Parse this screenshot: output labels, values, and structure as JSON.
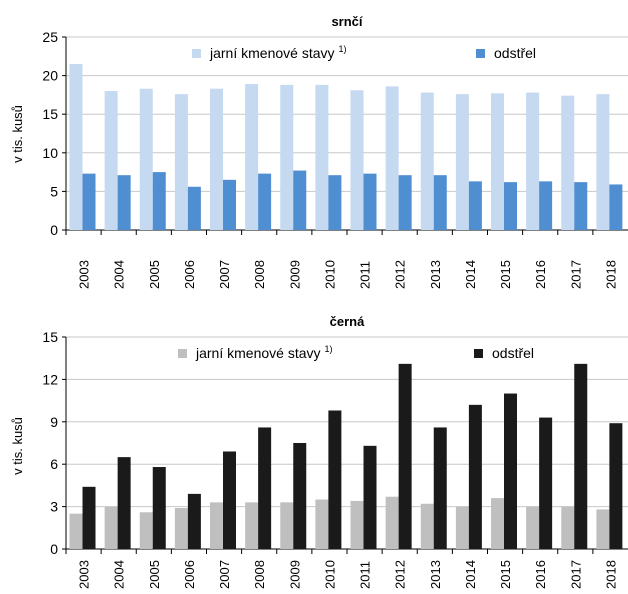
{
  "chart_data": [
    {
      "type": "bar",
      "title": "srnčí",
      "ylabel": "v tis. kusů",
      "xlabel": "",
      "ylim": [
        0,
        25
      ],
      "yticks": [
        0,
        5,
        10,
        15,
        20,
        25
      ],
      "grid": true,
      "legend_position": "top",
      "categories": [
        "2003",
        "2004",
        "2005",
        "2006",
        "2007",
        "2008",
        "2009",
        "2010",
        "2011",
        "2012",
        "2013",
        "2014",
        "2015",
        "2016",
        "2017",
        "2018"
      ],
      "series": [
        {
          "name": "jarní kmenové stavy",
          "superscript": "1)",
          "color": "#c5d9f1",
          "values": [
            21.5,
            18.0,
            18.3,
            17.6,
            18.3,
            18.9,
            18.8,
            18.8,
            18.1,
            18.6,
            17.8,
            17.6,
            17.7,
            17.8,
            17.4,
            17.6
          ]
        },
        {
          "name": "odstřel",
          "superscript": "",
          "color": "#4f8ed0",
          "values": [
            7.3,
            7.1,
            7.5,
            5.6,
            6.5,
            7.3,
            7.7,
            7.1,
            7.3,
            7.1,
            7.1,
            6.3,
            6.2,
            6.3,
            6.2,
            5.9
          ]
        }
      ]
    },
    {
      "type": "bar",
      "title": "černá",
      "ylabel": "v tis. kusů",
      "xlabel": "",
      "ylim": [
        0,
        15
      ],
      "yticks": [
        0,
        3,
        6,
        9,
        12,
        15
      ],
      "grid": true,
      "legend_position": "top",
      "categories": [
        "2003",
        "2004",
        "2005",
        "2006",
        "2007",
        "2008",
        "2009",
        "2010",
        "2011",
        "2012",
        "2013",
        "2014",
        "2015",
        "2016",
        "2017",
        "2018"
      ],
      "series": [
        {
          "name": "jarní kmenové stavy",
          "superscript": "1)",
          "color": "#bfbfbf",
          "values": [
            2.5,
            3.0,
            2.6,
            2.9,
            3.3,
            3.3,
            3.3,
            3.5,
            3.4,
            3.7,
            3.2,
            3.0,
            3.6,
            3.0,
            3.0,
            2.8
          ]
        },
        {
          "name": "odstřel",
          "superscript": "",
          "color": "#1a1a1a",
          "values": [
            4.4,
            6.5,
            5.8,
            3.9,
            6.9,
            8.6,
            7.5,
            9.8,
            7.3,
            13.1,
            8.6,
            10.2,
            11.0,
            9.3,
            13.1,
            8.9
          ]
        }
      ]
    }
  ]
}
